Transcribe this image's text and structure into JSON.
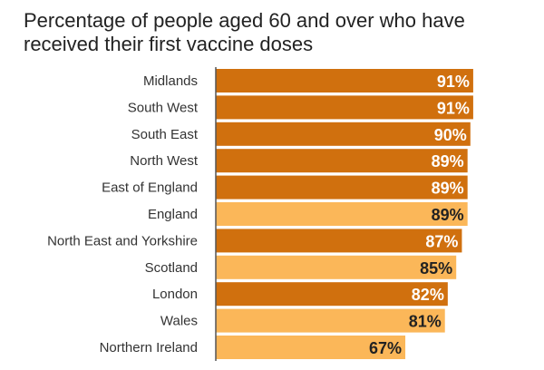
{
  "chart_data": {
    "type": "bar",
    "orientation": "horizontal",
    "title": "Percentage of people aged 60 and over who have received their first vaccine doses",
    "xlabel": "",
    "ylabel": "",
    "xlim": [
      0,
      100
    ],
    "grid": false,
    "legend": "none",
    "categories": [
      "Midlands",
      "South West",
      "South East",
      "North West",
      "East of England",
      "England",
      "North East and Yorkshire",
      "Scotland",
      "London",
      "Wales",
      "Northern Ireland"
    ],
    "values": [
      91,
      91,
      90,
      89,
      89,
      89,
      87,
      85,
      82,
      81,
      67
    ],
    "value_labels": [
      "91%",
      "91%",
      "90%",
      "89%",
      "89%",
      "89%",
      "87%",
      "85%",
      "82%",
      "81%",
      "67%"
    ],
    "bar_groups": [
      "nhs-region",
      "nhs-region",
      "nhs-region",
      "nhs-region",
      "nhs-region",
      "nation",
      "nhs-region",
      "nation",
      "nhs-region",
      "nation",
      "nation"
    ],
    "colors": {
      "nhs-region": "#d0700e",
      "nation": "#fbb759",
      "label_on_dark": "#ffffff",
      "label_on_light": "#222222",
      "axis": "#555555",
      "category_text": "#333333"
    }
  }
}
